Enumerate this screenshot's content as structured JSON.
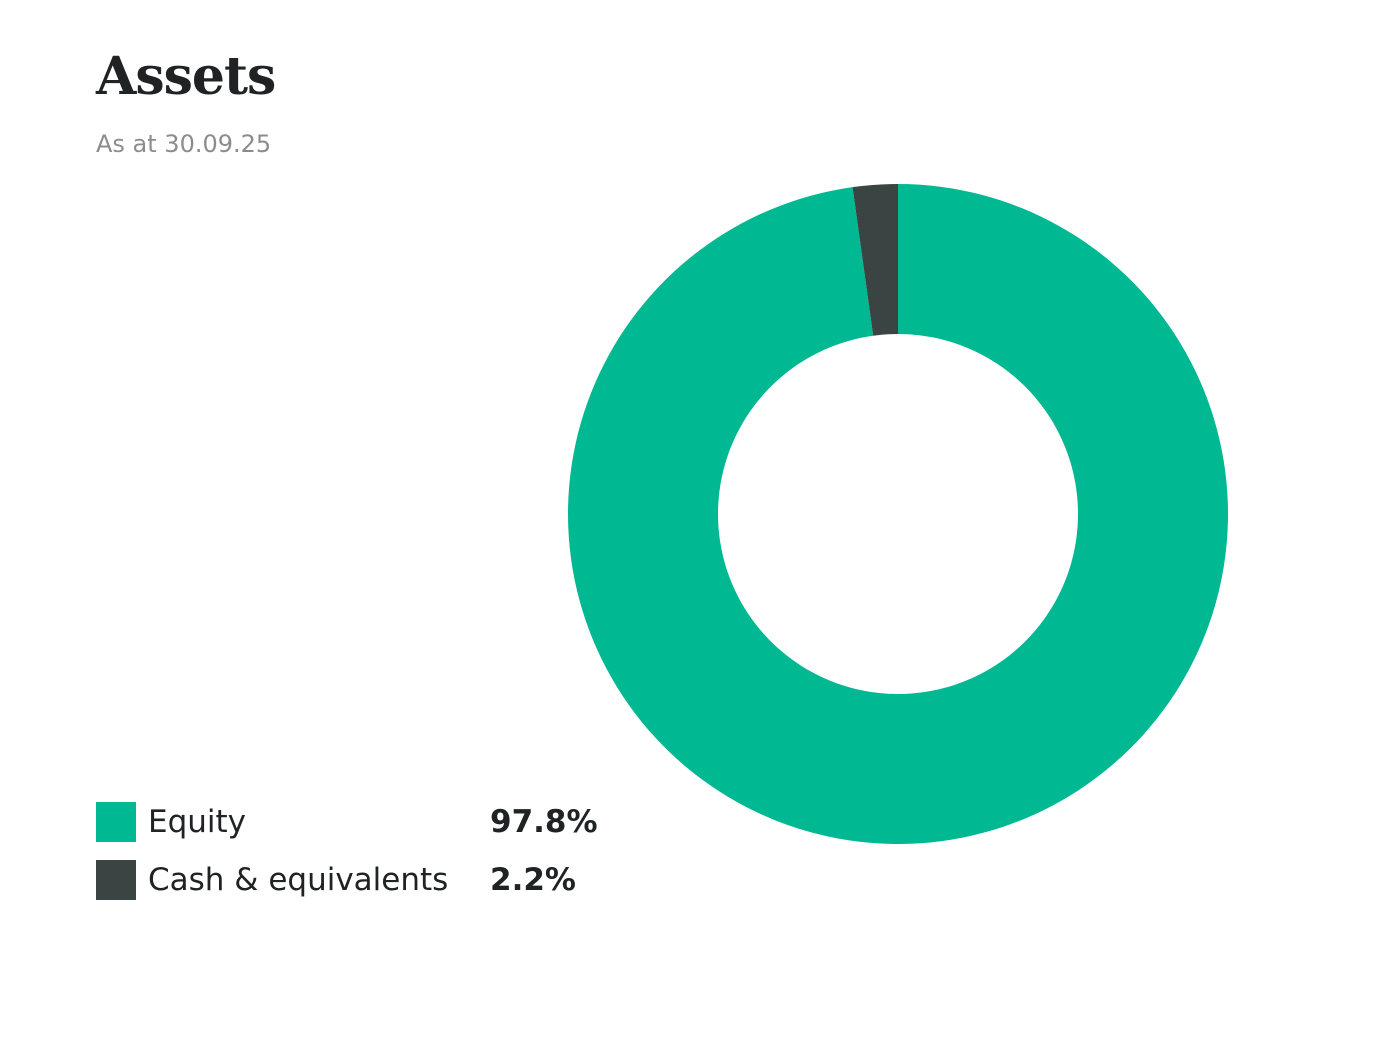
{
  "header": {
    "title": "Assets",
    "subtitle": "As at 30.09.25"
  },
  "chart_data": {
    "type": "pie",
    "variant": "donut",
    "title": "Assets",
    "subtitle": "As at 30.09.25",
    "legend_position": "bottom-left",
    "slices": [
      {
        "name": "Equity",
        "value": 97.8,
        "value_label": "97.8%",
        "color": "#00B891"
      },
      {
        "name": "Cash & equivalents",
        "value": 2.2,
        "value_label": "2.2%",
        "color": "#3A4443"
      }
    ]
  }
}
